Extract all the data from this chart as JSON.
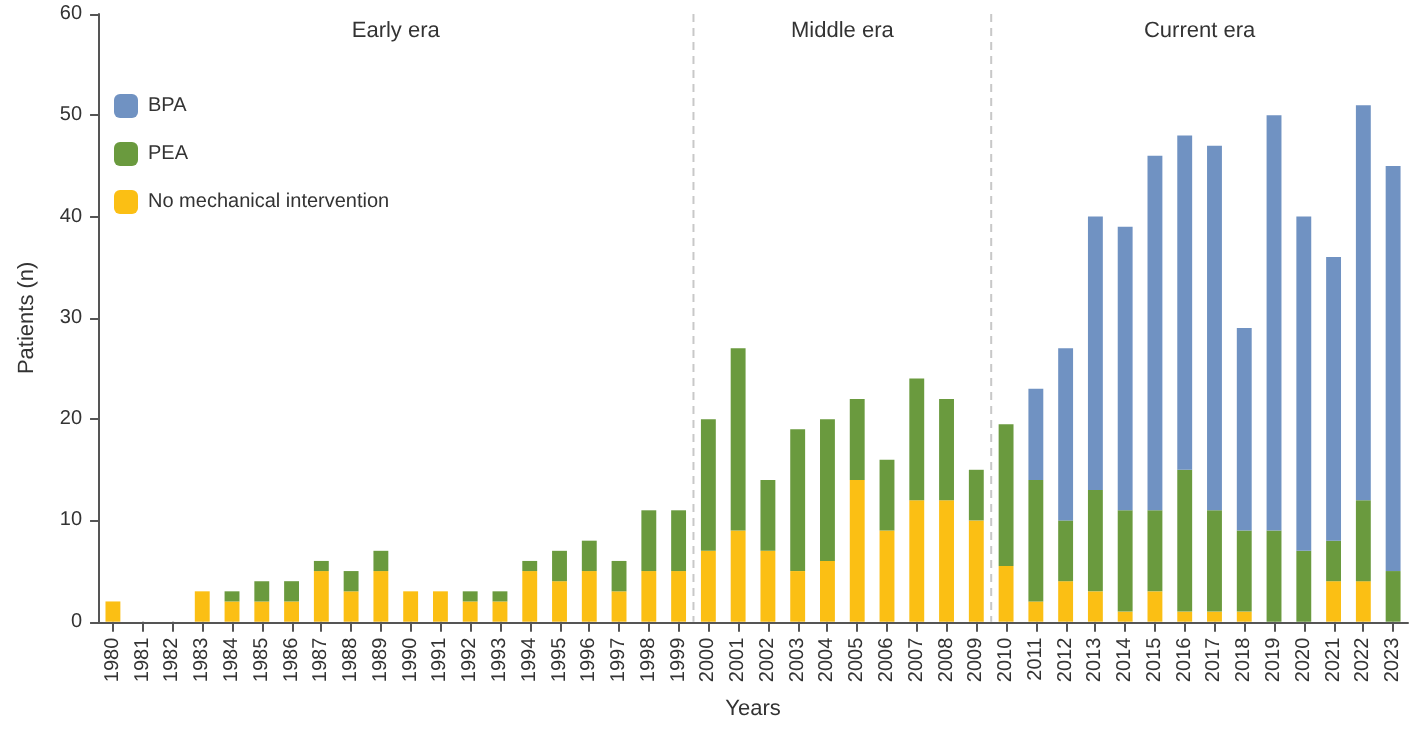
{
  "chart_data": {
    "type": "bar",
    "stacked": true,
    "xlabel": "Years",
    "ylabel": "Patients (n)",
    "categories": [
      "1980",
      "1981",
      "1982",
      "1983",
      "1984",
      "1985",
      "1986",
      "1987",
      "1988",
      "1989",
      "1990",
      "1991",
      "1992",
      "1993",
      "1994",
      "1995",
      "1996",
      "1997",
      "1998",
      "1999",
      "2000",
      "2001",
      "2002",
      "2003",
      "2004",
      "2005",
      "2006",
      "2007",
      "2008",
      "2009",
      "2010",
      "2011",
      "2012",
      "2013",
      "2014",
      "2015",
      "2016",
      "2017",
      "2018",
      "2019",
      "2020",
      "2021",
      "2022",
      "2023"
    ],
    "series": [
      {
        "name": "No mechanical intervention",
        "color": "#fbbf14",
        "values": [
          2,
          0,
          0,
          3,
          2,
          2,
          2,
          5,
          3,
          5,
          3,
          3,
          2,
          2,
          5,
          4,
          5,
          3,
          5,
          5,
          7,
          9,
          7,
          5,
          6,
          14,
          9,
          12,
          12,
          10,
          5.5,
          2,
          4,
          3,
          1,
          3,
          1,
          1,
          1,
          0,
          0,
          4,
          4,
          0
        ]
      },
      {
        "name": "PEA",
        "color": "#6a9a3e",
        "values": [
          0,
          0,
          0,
          0,
          1,
          2,
          2,
          1,
          2,
          2,
          0,
          0,
          1,
          1,
          1,
          3,
          3,
          3,
          6,
          6,
          13,
          18,
          7,
          14,
          14,
          8,
          7,
          12,
          10,
          5,
          14,
          12,
          6,
          10,
          10,
          8,
          14,
          10,
          8,
          9,
          7,
          4,
          8,
          5
        ]
      },
      {
        "name": "BPA",
        "color": "#7092c2",
        "values": [
          0,
          0,
          0,
          0,
          0,
          0,
          0,
          0,
          0,
          0,
          0,
          0,
          0,
          0,
          0,
          0,
          0,
          0,
          0,
          0,
          0,
          0,
          0,
          0,
          0,
          0,
          0,
          0,
          0,
          0,
          0,
          9,
          17,
          27,
          28,
          35,
          33,
          36,
          20,
          41,
          33,
          28,
          39,
          40
        ]
      }
    ],
    "ylim": [
      0,
      60
    ],
    "yticks": [
      0,
      10,
      20,
      30,
      40,
      50,
      60
    ],
    "grid": false,
    "legend": "top left",
    "annotations": [
      "Early era",
      "Middle era",
      "Current era"
    ]
  }
}
